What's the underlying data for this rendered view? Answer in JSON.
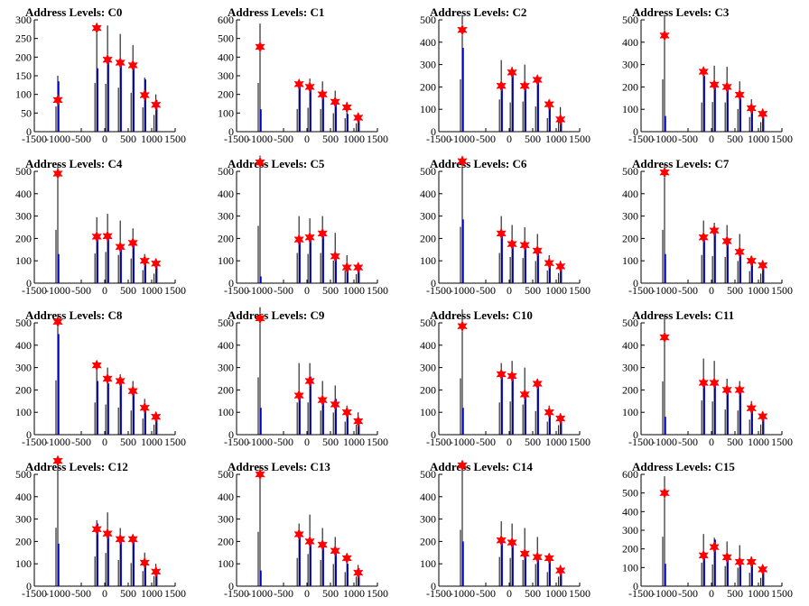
{
  "axis": {
    "xlim": [
      -1500,
      1500
    ],
    "xticks": [
      -1500,
      -1000,
      -500,
      0,
      500,
      1000,
      1500
    ],
    "xtick_labels": [
      "-1500",
      "-1000",
      "-500",
      "0",
      "500",
      "1000",
      "1500"
    ]
  },
  "colors": {
    "histogram": "#000000",
    "fit": "#0000ff",
    "marker": "#ff0000"
  },
  "chart_data": [
    {
      "type": "bar",
      "title": "Address Levels: C0",
      "ylim": [
        0,
        300
      ],
      "yticks": [
        0,
        50,
        100,
        150,
        200,
        250,
        300
      ],
      "peaks_x": [
        -1000,
        -170,
        60,
        330,
        600,
        850,
        1090
      ],
      "black_heights": [
        150,
        290,
        285,
        262,
        232,
        145,
        100
      ],
      "blue_heights": [
        135,
        170,
        200,
        186,
        180,
        140,
        85
      ],
      "marker_values": [
        85,
        278,
        193,
        185,
        178,
        98,
        72
      ]
    },
    {
      "type": "bar",
      "title": "Address Levels: C1",
      "ylim": [
        0,
        600
      ],
      "yticks": [
        0,
        100,
        200,
        300,
        400,
        500,
        600
      ],
      "peaks_x": [
        -1000,
        -170,
        60,
        330,
        600,
        850,
        1090
      ],
      "black_heights": [
        580,
        270,
        285,
        270,
        220,
        160,
        100
      ],
      "blue_heights": [
        120,
        240,
        250,
        210,
        145,
        95,
        60
      ],
      "marker_values": [
        455,
        255,
        240,
        200,
        160,
        130,
        75
      ]
    },
    {
      "type": "bar",
      "title": "Address Levels: C2",
      "ylim": [
        0,
        500
      ],
      "yticks": [
        0,
        100,
        200,
        300,
        400,
        500
      ],
      "peaks_x": [
        -1000,
        -170,
        60,
        330,
        600,
        850,
        1090
      ],
      "black_heights": [
        520,
        320,
        290,
        300,
        250,
        135,
        110
      ],
      "blue_heights": [
        375,
        205,
        260,
        210,
        220,
        110,
        60
      ],
      "marker_values": [
        455,
        205,
        265,
        205,
        232,
        122,
        55
      ]
    },
    {
      "type": "bar",
      "title": "Address Levels: C3",
      "ylim": [
        0,
        500
      ],
      "yticks": [
        0,
        100,
        200,
        300,
        400,
        500
      ],
      "peaks_x": [
        -1000,
        -170,
        60,
        330,
        600,
        850,
        1090
      ],
      "black_heights": [
        520,
        290,
        295,
        290,
        225,
        145,
        95
      ],
      "blue_heights": [
        70,
        250,
        200,
        195,
        150,
        95,
        75
      ],
      "marker_values": [
        430,
        268,
        210,
        200,
        165,
        105,
        80
      ]
    },
    {
      "type": "bar",
      "title": "Address Levels: C4",
      "ylim": [
        0,
        500
      ],
      "yticks": [
        0,
        100,
        200,
        300,
        400,
        500
      ],
      "peaks_x": [
        -1000,
        -170,
        60,
        330,
        600,
        850,
        1090
      ],
      "black_heights": [
        530,
        295,
        310,
        280,
        245,
        130,
        95
      ],
      "blue_heights": [
        130,
        200,
        205,
        155,
        180,
        95,
        80
      ],
      "marker_values": [
        490,
        208,
        210,
        162,
        180,
        100,
        88
      ]
    },
    {
      "type": "bar",
      "title": "Address Levels: C5",
      "ylim": [
        0,
        500
      ],
      "yticks": [
        0,
        100,
        200,
        300,
        400,
        500
      ],
      "peaks_x": [
        -1000,
        -170,
        60,
        330,
        600,
        850,
        1090
      ],
      "black_heights": [
        570,
        300,
        290,
        300,
        225,
        125,
        90
      ],
      "blue_heights": [
        30,
        190,
        200,
        210,
        125,
        70,
        60
      ],
      "marker_values": [
        540,
        195,
        205,
        222,
        120,
        70,
        70
      ]
    },
    {
      "type": "bar",
      "title": "Address Levels: C6",
      "ylim": [
        0,
        500
      ],
      "yticks": [
        0,
        100,
        200,
        300,
        400,
        500
      ],
      "peaks_x": [
        -1000,
        -170,
        60,
        330,
        600,
        850,
        1090
      ],
      "black_heights": [
        560,
        300,
        260,
        250,
        220,
        125,
        100
      ],
      "blue_heights": [
        285,
        220,
        175,
        170,
        140,
        90,
        70
      ],
      "marker_values": [
        545,
        222,
        175,
        170,
        145,
        90,
        75
      ]
    },
    {
      "type": "bar",
      "title": "Address Levels: C7",
      "ylim": [
        0,
        500
      ],
      "yticks": [
        0,
        100,
        200,
        300,
        400,
        500
      ],
      "peaks_x": [
        -1000,
        -170,
        60,
        330,
        600,
        850,
        1090
      ],
      "black_heights": [
        530,
        280,
        270,
        260,
        220,
        120,
        95
      ],
      "blue_heights": [
        130,
        200,
        230,
        185,
        140,
        95,
        80
      ],
      "marker_values": [
        495,
        205,
        235,
        188,
        140,
        100,
        80
      ]
    },
    {
      "type": "bar",
      "title": "Address Levels: C8",
      "ylim": [
        0,
        500
      ],
      "yticks": [
        0,
        100,
        200,
        300,
        400,
        500
      ],
      "peaks_x": [
        -1000,
        -170,
        60,
        330,
        600,
        850,
        1090
      ],
      "black_heights": [
        540,
        320,
        300,
        270,
        240,
        160,
        100
      ],
      "blue_heights": [
        450,
        240,
        230,
        240,
        190,
        120,
        80
      ],
      "marker_values": [
        505,
        310,
        250,
        240,
        195,
        120,
        80
      ]
    },
    {
      "type": "bar",
      "title": "Address Levels: C9",
      "ylim": [
        0,
        500
      ],
      "yticks": [
        0,
        100,
        200,
        300,
        400,
        500
      ],
      "peaks_x": [
        -1000,
        -170,
        60,
        330,
        600,
        850,
        1090
      ],
      "black_heights": [
        570,
        320,
        320,
        240,
        220,
        130,
        100
      ],
      "blue_heights": [
        120,
        170,
        260,
        160,
        160,
        100,
        60
      ],
      "marker_values": [
        520,
        175,
        240,
        155,
        135,
        100,
        60
      ]
    },
    {
      "type": "bar",
      "title": "Address Levels: C10",
      "ylim": [
        0,
        500
      ],
      "yticks": [
        0,
        100,
        200,
        300,
        400,
        500
      ],
      "peaks_x": [
        -1000,
        -170,
        60,
        330,
        600,
        850,
        1090
      ],
      "black_heights": [
        560,
        320,
        330,
        300,
        235,
        130,
        95
      ],
      "blue_heights": [
        120,
        260,
        270,
        190,
        230,
        100,
        70
      ],
      "marker_values": [
        485,
        270,
        262,
        180,
        228,
        100,
        72
      ]
    },
    {
      "type": "bar",
      "title": "Address Levels: C11",
      "ylim": [
        0,
        500
      ],
      "yticks": [
        0,
        100,
        200,
        300,
        400,
        500
      ],
      "peaks_x": [
        -1000,
        -170,
        60,
        330,
        600,
        850,
        1090
      ],
      "black_heights": [
        530,
        340,
        330,
        250,
        240,
        150,
        100
      ],
      "blue_heights": [
        80,
        230,
        240,
        200,
        200,
        110,
        80
      ],
      "marker_values": [
        435,
        232,
        232,
        200,
        200,
        118,
        82
      ]
    },
    {
      "type": "bar",
      "title": "Address Levels: C12",
      "ylim": [
        0,
        500
      ],
      "yticks": [
        0,
        100,
        200,
        300,
        400,
        500
      ],
      "peaks_x": [
        -1000,
        -170,
        60,
        330,
        600,
        850,
        1090
      ],
      "black_heights": [
        580,
        295,
        330,
        260,
        230,
        150,
        100
      ],
      "blue_heights": [
        190,
        280,
        230,
        210,
        210,
        110,
        70
      ],
      "marker_values": [
        560,
        255,
        235,
        210,
        210,
        105,
        65
      ]
    },
    {
      "type": "bar",
      "title": "Address Levels: C13",
      "ylim": [
        0,
        500
      ],
      "yticks": [
        0,
        100,
        200,
        300,
        400,
        500
      ],
      "peaks_x": [
        -1000,
        -170,
        60,
        330,
        600,
        850,
        1090
      ],
      "black_heights": [
        540,
        280,
        320,
        260,
        220,
        140,
        95
      ],
      "blue_heights": [
        70,
        230,
        200,
        190,
        170,
        100,
        80
      ],
      "marker_values": [
        500,
        232,
        200,
        185,
        158,
        125,
        60
      ]
    },
    {
      "type": "bar",
      "title": "Address Levels: C14",
      "ylim": [
        0,
        500
      ],
      "yticks": [
        0,
        100,
        200,
        300,
        400,
        500
      ],
      "peaks_x": [
        -1000,
        -170,
        60,
        330,
        600,
        850,
        1090
      ],
      "black_heights": [
        560,
        290,
        280,
        260,
        220,
        140,
        95
      ],
      "blue_heights": [
        200,
        210,
        200,
        150,
        140,
        120,
        70
      ],
      "marker_values": [
        540,
        205,
        195,
        145,
        130,
        125,
        70
      ]
    },
    {
      "type": "bar",
      "title": "Address Levels: C15",
      "ylim": [
        0,
        600
      ],
      "yticks": [
        0,
        100,
        200,
        300,
        400,
        500,
        600
      ],
      "peaks_x": [
        -1000,
        -170,
        60,
        330,
        600,
        850,
        1090
      ],
      "black_heights": [
        590,
        280,
        260,
        240,
        220,
        160,
        100
      ],
      "blue_heights": [
        120,
        180,
        250,
        170,
        140,
        130,
        90
      ],
      "marker_values": [
        500,
        165,
        210,
        155,
        130,
        130,
        90
      ]
    }
  ]
}
